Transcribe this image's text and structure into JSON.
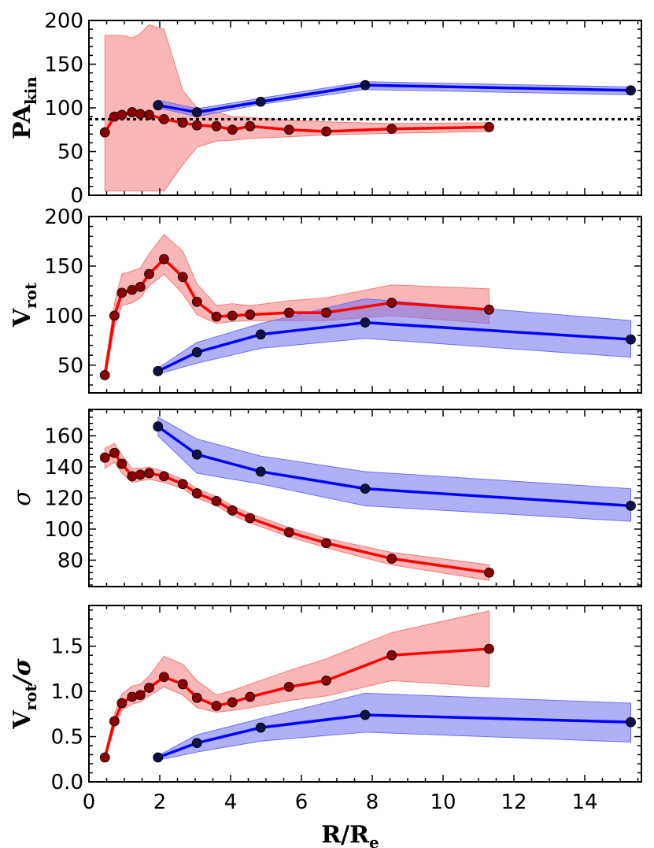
{
  "chart_data": {
    "type": "line",
    "layout": "4 vertically stacked panels sharing the x axis",
    "xlabel": {
      "main": "R/R",
      "sub": "e"
    },
    "xlim": [
      0,
      15.6
    ],
    "xticks": [
      0,
      2,
      4,
      6,
      8,
      10,
      12,
      14
    ],
    "x_tick_labels": [
      "0",
      "2",
      "4",
      "6",
      "8",
      "10",
      "12",
      "14"
    ],
    "colors": {
      "red_line": "#ff0000",
      "red_marker": "#8b0000",
      "red_fill": "#f47a7a",
      "blue_line": "#0000ff",
      "blue_marker": "#101046",
      "blue_fill": "#7070f0"
    },
    "panels": [
      {
        "id": "pa",
        "ylabel": {
          "main": "PA",
          "sub": "kin",
          "italic": false
        },
        "ylim": [
          0,
          200
        ],
        "yticks": [
          0,
          50,
          100,
          150,
          200
        ],
        "y_tick_labels": [
          "0",
          "50",
          "100",
          "150",
          "200"
        ],
        "reference_line": 87,
        "series": [
          {
            "name": "red",
            "x": [
              0.45,
              0.72,
              0.93,
              1.22,
              1.45,
              1.7,
              2.12,
              2.65,
              3.05,
              3.6,
              4.05,
              4.55,
              5.65,
              6.7,
              8.55,
              11.3
            ],
            "y": [
              72,
              90,
              92,
              95,
              93,
              92,
              87,
              83,
              80,
              79,
              75,
              79,
              75,
              73,
              76,
              78
            ],
            "lower": [
              5,
              5,
              5,
              5,
              5,
              5,
              5,
              35,
              55,
              62,
              63,
              65,
              67,
              69,
              71,
              73
            ],
            "upper": [
              183,
              183,
              183,
              180,
              185,
              195,
              190,
              120,
              100,
              95,
              90,
              89,
              86,
              84,
              82,
              83
            ]
          },
          {
            "name": "blue",
            "x": [
              1.95,
              3.05,
              4.85,
              7.8,
              15.3
            ],
            "y": [
              103,
              95,
              107,
              126,
              120
            ],
            "lower": [
              100,
              90,
              104,
              121,
              115
            ],
            "upper": [
              109,
              99,
              111,
              130,
              124
            ]
          }
        ]
      },
      {
        "id": "vrot",
        "ylabel": {
          "main": "V",
          "sub": "rot",
          "italic": false
        },
        "ylim": [
          22,
          200
        ],
        "yticks": [
          50,
          100,
          150,
          200
        ],
        "y_tick_labels": [
          "50",
          "100",
          "150",
          "200"
        ],
        "series": [
          {
            "name": "red",
            "x": [
              0.45,
              0.72,
              0.93,
              1.22,
              1.45,
              1.7,
              2.12,
              2.65,
              3.05,
              3.6,
              4.05,
              4.55,
              5.65,
              6.7,
              8.55,
              11.3
            ],
            "y": [
              40,
              100,
              123,
              126,
              129,
              142,
              157,
              139,
              114,
              99,
              100,
              101,
              103,
              103,
              113,
              106
            ],
            "lower": [
              34,
              88,
              110,
              113,
              118,
              130,
              142,
              122,
              101,
              92,
              94,
              95,
              95,
              95,
              100,
              92
            ],
            "upper": [
              46,
              112,
              142,
              145,
              148,
              162,
              182,
              165,
              132,
              110,
              112,
              110,
              115,
              118,
              131,
              127
            ]
          },
          {
            "name": "blue",
            "x": [
              1.95,
              3.05,
              4.85,
              7.8,
              15.3
            ],
            "y": [
              44,
              63,
              81,
              93,
              76
            ],
            "lower": [
              41,
              52,
              67,
              77,
              58
            ],
            "upper": [
              47,
              73,
              92,
              117,
              95
            ]
          }
        ]
      },
      {
        "id": "sigma",
        "ylabel": {
          "main": "σ",
          "sub": "",
          "italic": true
        },
        "ylim": [
          63,
          177
        ],
        "yticks": [
          80,
          100,
          120,
          140,
          160
        ],
        "y_tick_labels": [
          "80",
          "100",
          "120",
          "140",
          "160"
        ],
        "series": [
          {
            "name": "red",
            "x": [
              0.45,
              0.72,
              0.93,
              1.22,
              1.45,
              1.7,
              2.12,
              2.65,
              3.05,
              3.6,
              4.05,
              4.55,
              5.65,
              6.7,
              8.55,
              11.3
            ],
            "y": [
              146,
              149,
              142,
              134,
              135,
              136,
              134,
              129,
              123,
              118,
              112,
              107,
              98,
              91,
              81,
              72
            ],
            "lower": [
              139,
              143,
              136,
              130,
              131,
              132,
              130,
              126,
              120,
              115,
              109,
              104,
              95,
              88,
              77,
              67
            ],
            "upper": [
              152,
              155,
              148,
              139,
              139,
              140,
              137,
              132,
              126,
              121,
              115,
              110,
              101,
              94,
              85,
              77
            ]
          },
          {
            "name": "blue",
            "x": [
              1.95,
              3.05,
              4.85,
              7.8,
              15.3
            ],
            "y": [
              166,
              148,
              137,
              126,
              115
            ],
            "lower": [
              160,
              136,
              129,
              115,
              105
            ],
            "upper": [
              172,
              158,
              147,
              137,
              126
            ]
          }
        ]
      },
      {
        "id": "vsig",
        "ylabel": {
          "main": "V",
          "sub": "rot",
          "suffix": "/σ",
          "italic": false
        },
        "ylim": [
          0,
          1.95
        ],
        "yticks": [
          0,
          0.5,
          1.0,
          1.5
        ],
        "y_tick_labels": [
          "0.0",
          "0.5",
          "1.0",
          "1.5"
        ],
        "series": [
          {
            "name": "red",
            "x": [
              0.45,
              0.72,
              0.93,
              1.22,
              1.45,
              1.7,
              2.12,
              2.65,
              3.05,
              3.6,
              4.05,
              4.55,
              5.65,
              6.7,
              8.55,
              11.3
            ],
            "y": [
              0.27,
              0.67,
              0.87,
              0.94,
              0.96,
              1.04,
              1.16,
              1.08,
              0.93,
              0.84,
              0.88,
              0.94,
              1.05,
              1.12,
              1.4,
              1.47
            ],
            "lower": [
              0.24,
              0.6,
              0.79,
              0.86,
              0.88,
              0.95,
              1.05,
              0.96,
              0.82,
              0.77,
              0.79,
              0.82,
              0.9,
              0.95,
              1.12,
              1.05
            ],
            "upper": [
              0.3,
              0.75,
              0.97,
              1.06,
              1.08,
              1.17,
              1.39,
              1.3,
              1.12,
              0.96,
              1.01,
              1.08,
              1.23,
              1.36,
              1.65,
              1.89
            ]
          },
          {
            "name": "blue",
            "x": [
              1.95,
              3.05,
              4.85,
              7.8,
              15.3
            ],
            "y": [
              0.27,
              0.43,
              0.6,
              0.74,
              0.66
            ],
            "lower": [
              0.24,
              0.33,
              0.45,
              0.55,
              0.44
            ],
            "upper": [
              0.29,
              0.52,
              0.7,
              0.98,
              0.87
            ]
          }
        ]
      }
    ]
  }
}
